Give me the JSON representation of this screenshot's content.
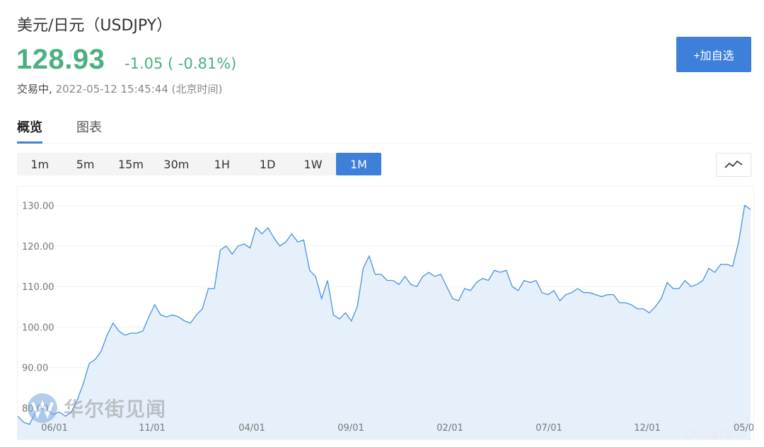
{
  "header": {
    "title": "美元/日元（USDJPY）",
    "price": "128.93",
    "change": "-1.05 ( -0.81%)",
    "status_label": "交易中,",
    "timestamp": "2022-05-12 15:45:44 (北京时间)",
    "add_button": "+加自选"
  },
  "tabs": [
    {
      "label": "概览",
      "active": true
    },
    {
      "label": "图表",
      "active": false
    }
  ],
  "periods": [
    {
      "label": "1m",
      "active": false
    },
    {
      "label": "5m",
      "active": false
    },
    {
      "label": "15m",
      "active": false
    },
    {
      "label": "30m",
      "active": false
    },
    {
      "label": "1H",
      "active": false
    },
    {
      "label": "1D",
      "active": false
    },
    {
      "label": "1W",
      "active": false
    },
    {
      "label": "1M",
      "active": true
    }
  ],
  "chart_type_icon": "line-chart-icon",
  "watermark": {
    "text": "华尔街见闻",
    "corner": "Chi.no7a"
  },
  "colors": {
    "accent": "#3d7fd9",
    "up_down": "#4caf82",
    "line": "#4a90e2",
    "area": "#e6f0fb"
  },
  "chart_data": {
    "type": "area",
    "ylim": [
      76,
      134
    ],
    "yticks": [
      "130.00",
      "120.00",
      "110.00",
      "100.00",
      "90.00",
      "80.00"
    ],
    "xticks": [
      "06/01",
      "11/01",
      "04/01",
      "09/01",
      "02/01",
      "07/01",
      "12/01",
      "05/0"
    ],
    "grid": true,
    "values": [
      78.0,
      76.5,
      76.0,
      79.0,
      80.0,
      79.5,
      78.5,
      79.0,
      78.0,
      79.0,
      82.0,
      86.0,
      91.0,
      92.0,
      94.0,
      98.0,
      101.0,
      99.0,
      98.0,
      98.5,
      98.5,
      99.0,
      102.5,
      105.5,
      103.0,
      102.5,
      103.0,
      102.5,
      101.5,
      101.0,
      103.0,
      104.5,
      109.5,
      109.5,
      119.0,
      120.0,
      118.0,
      120.0,
      120.5,
      119.5,
      124.5,
      123.0,
      124.5,
      122.0,
      120.0,
      121.0,
      123.0,
      121.0,
      121.5,
      114.0,
      112.5,
      107.0,
      111.5,
      103.0,
      102.0,
      103.5,
      101.5,
      105.0,
      114.5,
      117.5,
      113.0,
      113.0,
      111.5,
      111.5,
      110.5,
      112.5,
      110.5,
      110.0,
      112.5,
      113.5,
      112.5,
      113.0,
      110.0,
      107.0,
      106.5,
      109.5,
      109.0,
      111.0,
      112.0,
      111.5,
      114.0,
      113.5,
      114.0,
      110.0,
      109.0,
      111.5,
      111.0,
      111.5,
      108.5,
      108.0,
      109.0,
      106.5,
      108.0,
      108.5,
      109.5,
      108.5,
      108.5,
      108.0,
      107.5,
      108.0,
      108.0,
      106.0,
      106.0,
      105.5,
      104.5,
      104.5,
      103.5,
      105.0,
      107.0,
      111.0,
      109.5,
      109.5,
      111.5,
      110.0,
      110.5,
      111.5,
      114.5,
      113.5,
      115.5,
      115.5,
      115.0,
      121.0,
      130.0,
      129.0
    ]
  }
}
